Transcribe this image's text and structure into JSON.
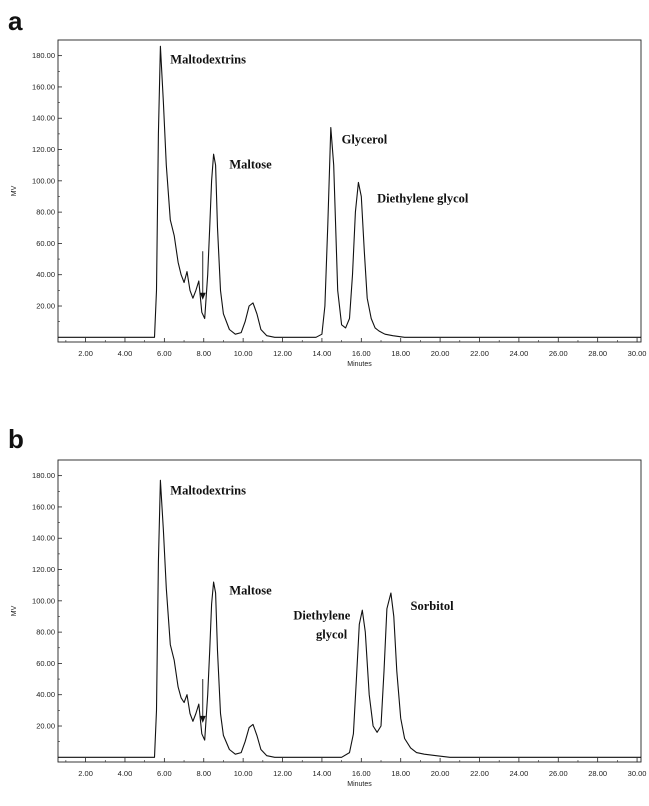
{
  "panels": [
    {
      "letter": "a"
    },
    {
      "letter": "b"
    }
  ],
  "chart_data": [
    {
      "type": "line",
      "panel": "a",
      "xlabel": "Minutes",
      "ylabel": "MV",
      "xlim": [
        0.6,
        30.2
      ],
      "ylim": [
        -3,
        190
      ],
      "xticks": [
        "2.00",
        "4.00",
        "6.00",
        "8.00",
        "10.00",
        "12.00",
        "14.00",
        "16.00",
        "18.00",
        "20.00",
        "22.00",
        "24.00",
        "26.00",
        "28.00",
        "30.00"
      ],
      "yticks": [
        "20.00",
        "40.00",
        "60.00",
        "80.00",
        "100.00",
        "120.00",
        "140.00",
        "160.00",
        "180.00"
      ],
      "series": [
        {
          "x": [
            0.6,
            5.3,
            5.5,
            5.6,
            5.7,
            5.8,
            5.95,
            6.1,
            6.3,
            6.5,
            6.7,
            6.85,
            7.0,
            7.15,
            7.3,
            7.45,
            7.6,
            7.75,
            7.9,
            8.05,
            8.2,
            8.3,
            8.4,
            8.5,
            8.6,
            8.7,
            8.85,
            9.0,
            9.3,
            9.6,
            9.9,
            10.1,
            10.3,
            10.5,
            10.7,
            10.9,
            11.2,
            11.6,
            12.0,
            12.6,
            13.2,
            13.7,
            14.0,
            14.15,
            14.3,
            14.45,
            14.6,
            14.8,
            15.0,
            15.2,
            15.4,
            15.55,
            15.7,
            15.85,
            16.0,
            16.15,
            16.3,
            16.5,
            16.7,
            16.9,
            17.2,
            17.6,
            18.2,
            19.0,
            20.0,
            22.0,
            30.2
          ],
          "y": [
            0,
            0,
            0,
            30,
            130,
            186,
            150,
            110,
            75,
            65,
            48,
            40,
            35,
            42,
            30,
            25,
            30,
            36,
            16,
            12,
            40,
            70,
            100,
            117,
            110,
            70,
            30,
            15,
            5,
            2,
            3,
            10,
            20,
            22,
            15,
            5,
            1,
            0,
            0,
            0,
            0,
            0,
            2,
            20,
            72,
            134,
            110,
            30,
            8,
            6,
            12,
            40,
            80,
            99,
            90,
            55,
            25,
            12,
            6,
            4,
            2,
            1,
            0,
            0,
            0,
            0,
            0
          ],
          "name": ""
        }
      ],
      "annotations": [
        {
          "text": "Maltodextrins",
          "x": 6.3,
          "y": 175
        },
        {
          "text": "Maltose",
          "x": 9.3,
          "y": 108
        },
        {
          "text": "Glycerol",
          "x": 15.0,
          "y": 124
        },
        {
          "text": "Diethylene glycol",
          "x": 16.8,
          "y": 86
        }
      ],
      "arrow": {
        "x": 7.95,
        "y_from": 55,
        "y_to": 24
      }
    },
    {
      "type": "line",
      "panel": "b",
      "xlabel": "Minutes",
      "ylabel": "MV",
      "xlim": [
        0.6,
        30.2
      ],
      "ylim": [
        -3,
        190
      ],
      "xticks": [
        "2.00",
        "4.00",
        "6.00",
        "8.00",
        "10.00",
        "12.00",
        "14.00",
        "16.00",
        "18.00",
        "20.00",
        "22.00",
        "24.00",
        "26.00",
        "28.00",
        "30.00"
      ],
      "yticks": [
        "20.00",
        "40.00",
        "60.00",
        "80.00",
        "100.00",
        "120.00",
        "140.00",
        "160.00",
        "180.00"
      ],
      "series": [
        {
          "x": [
            0.6,
            5.3,
            5.5,
            5.6,
            5.7,
            5.8,
            5.95,
            6.1,
            6.3,
            6.5,
            6.7,
            6.85,
            7.0,
            7.15,
            7.3,
            7.45,
            7.6,
            7.75,
            7.9,
            8.05,
            8.2,
            8.3,
            8.4,
            8.5,
            8.6,
            8.7,
            8.85,
            9.0,
            9.3,
            9.6,
            9.9,
            10.1,
            10.3,
            10.5,
            10.7,
            10.9,
            11.2,
            11.6,
            12.0,
            12.6,
            13.2,
            14.0,
            15.0,
            15.4,
            15.6,
            15.75,
            15.9,
            16.05,
            16.2,
            16.4,
            16.6,
            16.8,
            17.0,
            17.15,
            17.3,
            17.5,
            17.65,
            17.8,
            18.0,
            18.2,
            18.5,
            18.8,
            19.2,
            19.8,
            20.5,
            22.0,
            30.2
          ],
          "y": [
            0,
            0,
            0,
            30,
            125,
            177,
            145,
            108,
            72,
            62,
            45,
            38,
            35,
            40,
            28,
            23,
            28,
            34,
            15,
            11,
            40,
            68,
            98,
            112,
            105,
            68,
            28,
            14,
            5,
            2,
            3,
            10,
            19,
            21,
            14,
            5,
            1,
            0,
            0,
            0,
            0,
            0,
            0,
            3,
            15,
            50,
            85,
            94,
            80,
            40,
            20,
            16,
            20,
            55,
            95,
            105,
            90,
            55,
            25,
            12,
            6,
            3,
            2,
            1,
            0,
            0,
            0
          ],
          "name": ""
        }
      ],
      "annotations": [
        {
          "text": "Maltodextrins",
          "x": 6.3,
          "y": 168
        },
        {
          "text": "Maltose",
          "x": 9.3,
          "y": 104
        },
        {
          "text": "Diethylene",
          "x": 12.55,
          "y": 88
        },
        {
          "text": "glycol",
          "x": 13.7,
          "y": 76
        },
        {
          "text": "Sorbitol",
          "x": 18.5,
          "y": 94
        }
      ],
      "arrow": {
        "x": 7.95,
        "y_from": 50,
        "y_to": 22
      }
    }
  ]
}
